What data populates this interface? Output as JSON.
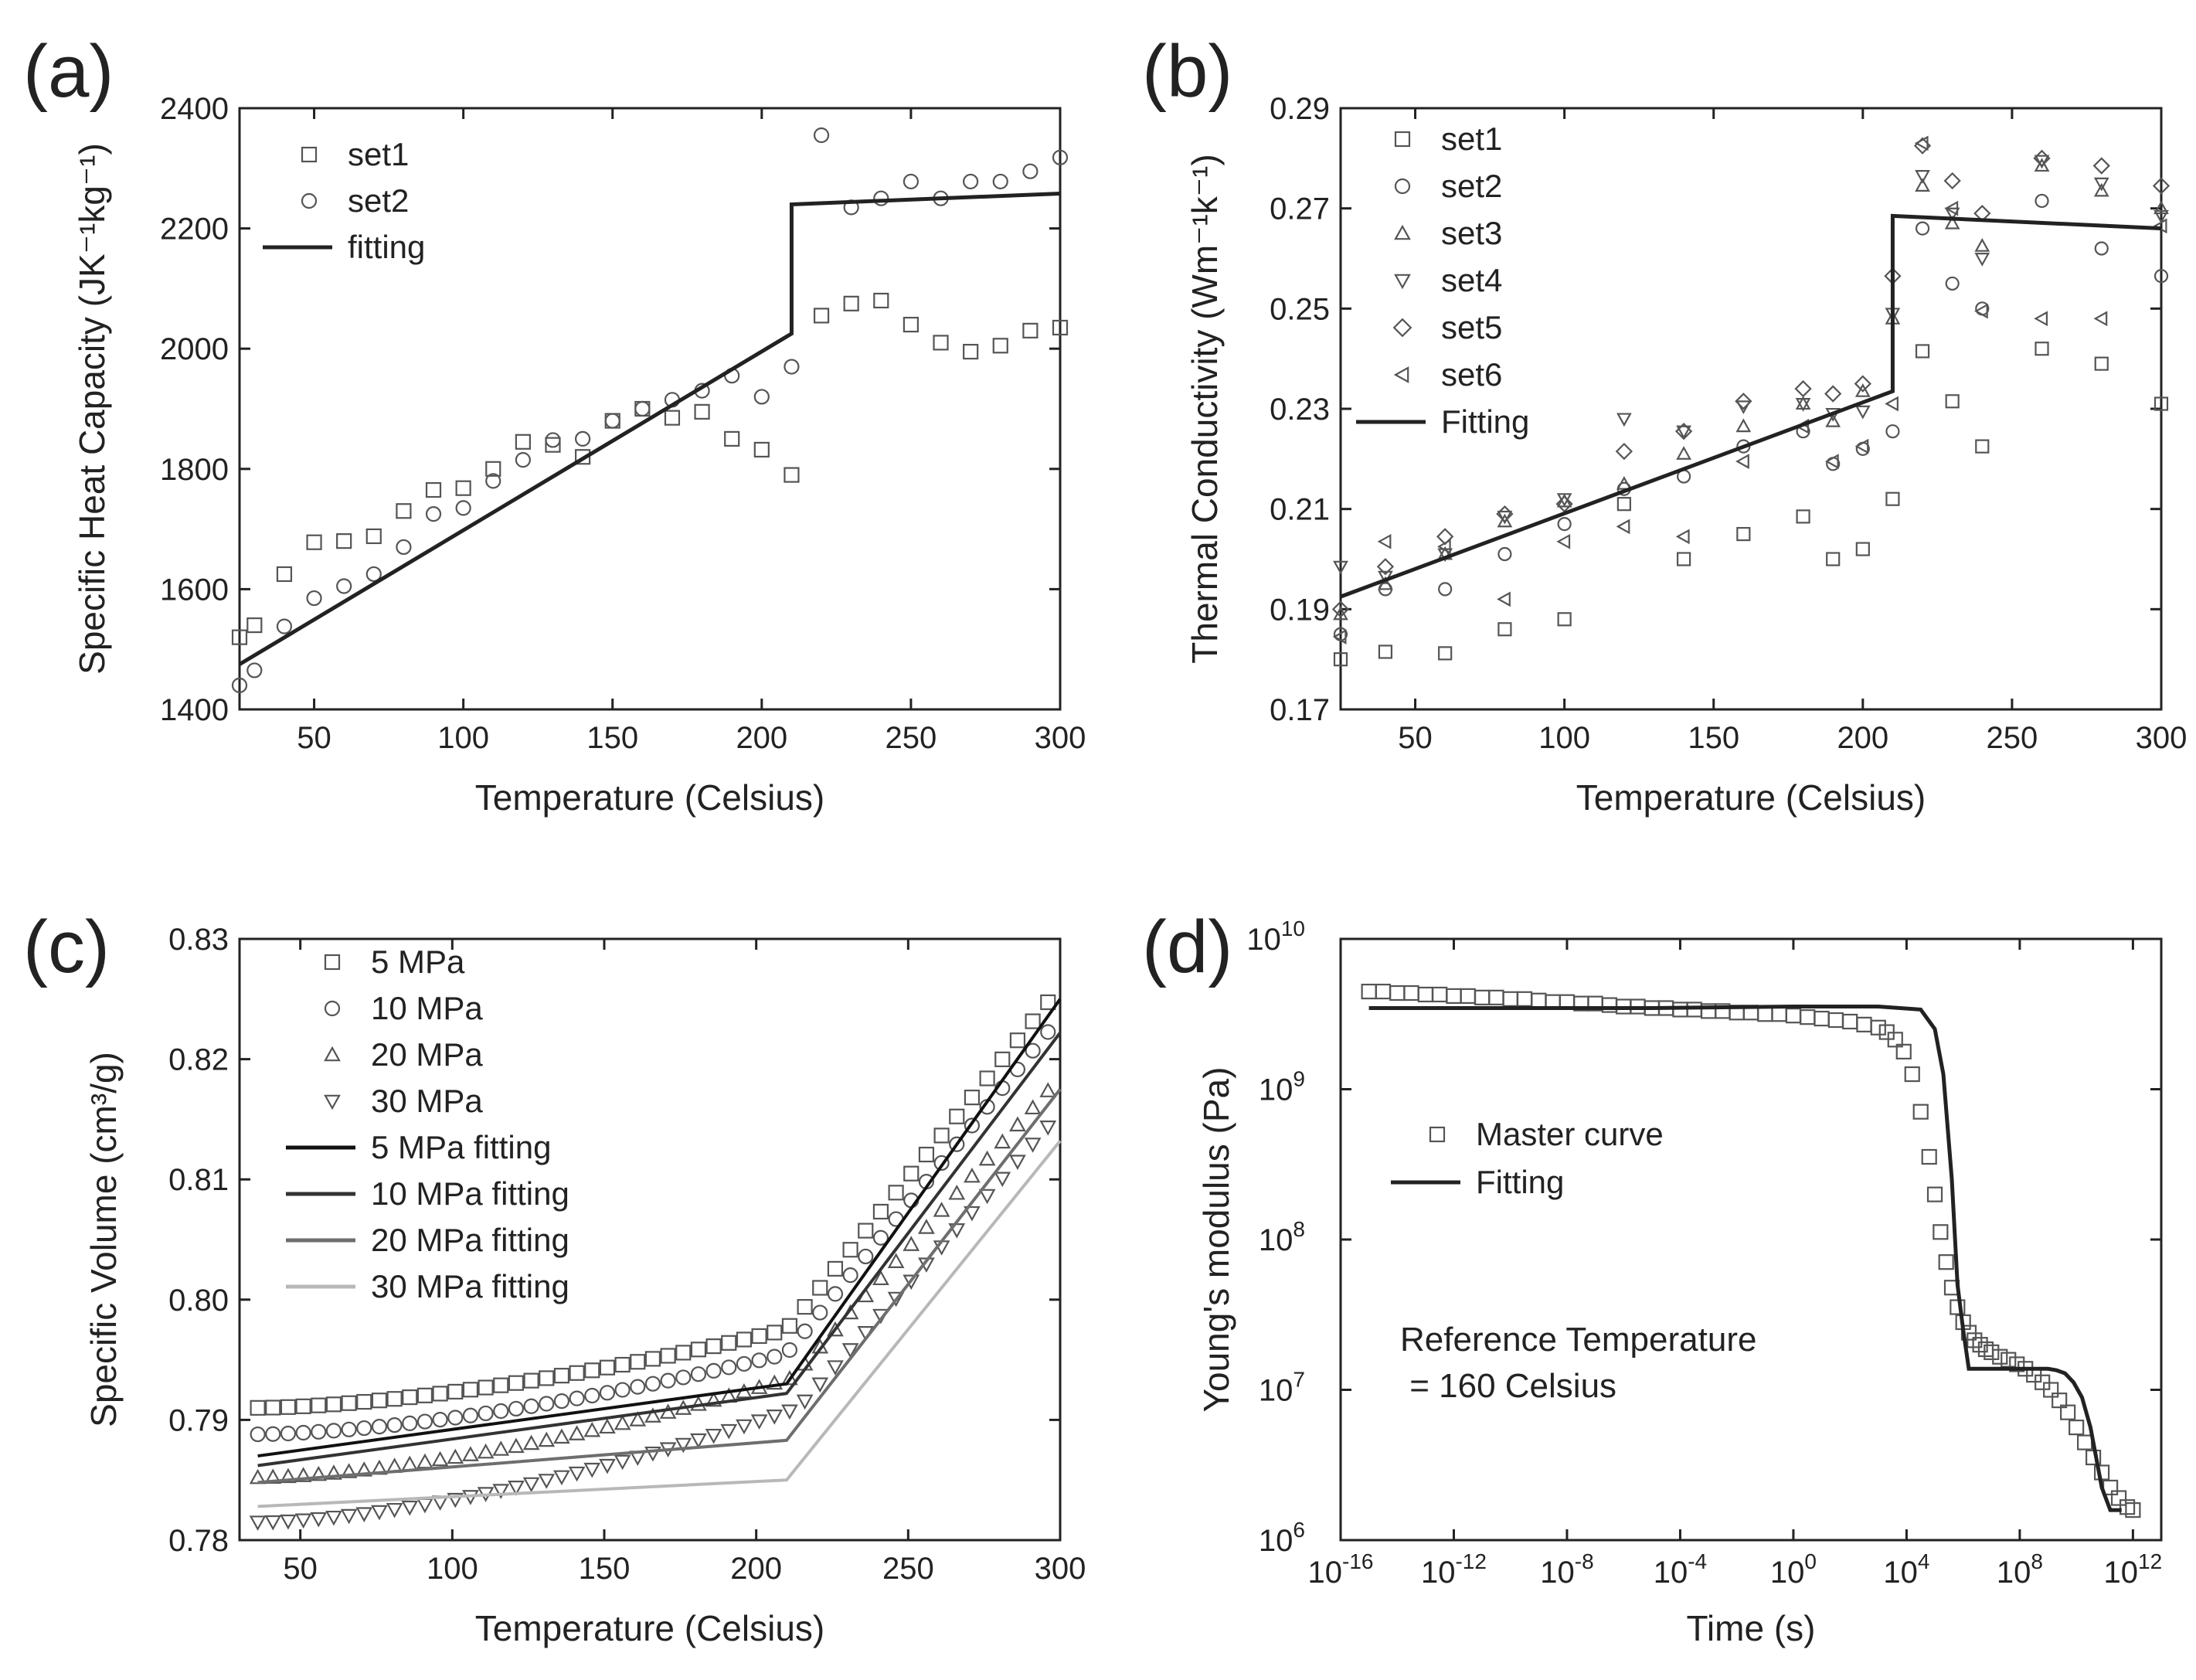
{
  "figure": {
    "panels": [
      "(a)",
      "(b)",
      "(c)",
      "(d)"
    ]
  },
  "chart_data": [
    {
      "panel": "(a)",
      "type": "scatter",
      "xlabel": "Temperature (Celsius)",
      "ylabel": "Specific Heat Capacity (JK⁻¹kg⁻¹)",
      "xlim": [
        25,
        300
      ],
      "ylim": [
        1400,
        2400
      ],
      "xticks": [
        50,
        100,
        150,
        200,
        250,
        300
      ],
      "yticks": [
        1400,
        1600,
        1800,
        2000,
        2200,
        2400
      ],
      "legend_position": "top-left",
      "series": [
        {
          "name": "set1",
          "marker": "square",
          "x": [
            25,
            30,
            40,
            50,
            60,
            70,
            80,
            90,
            100,
            110,
            120,
            130,
            140,
            150,
            160,
            170,
            180,
            190,
            200,
            210,
            220,
            230,
            240,
            250,
            260,
            270,
            280,
            290,
            300
          ],
          "y": [
            1520,
            1540,
            1625,
            1678,
            1680,
            1688,
            1730,
            1765,
            1768,
            1800,
            1845,
            1840,
            1820,
            1880,
            1900,
            1885,
            1895,
            1850,
            1832,
            1790,
            2055,
            2075,
            2080,
            2040,
            2010,
            1995,
            2005,
            2030,
            2035
          ]
        },
        {
          "name": "set2",
          "marker": "circle",
          "x": [
            25,
            30,
            40,
            50,
            60,
            70,
            80,
            90,
            100,
            110,
            120,
            130,
            140,
            150,
            160,
            170,
            180,
            190,
            200,
            210,
            220,
            230,
            240,
            250,
            260,
            270,
            280,
            290,
            300
          ],
          "y": [
            1440,
            1465,
            1538,
            1585,
            1605,
            1625,
            1670,
            1725,
            1735,
            1780,
            1815,
            1848,
            1850,
            1880,
            1900,
            1915,
            1930,
            1955,
            1920,
            1970,
            2355,
            2235,
            2250,
            2278,
            2250,
            2278,
            2278,
            2295,
            2318
          ]
        },
        {
          "name": "fitting",
          "line": true,
          "x": [
            25,
            210,
            210,
            300
          ],
          "y": [
            1475,
            2025,
            2240,
            2258
          ]
        }
      ]
    },
    {
      "panel": "(b)",
      "type": "scatter",
      "xlabel": "Temperature (Celsius)",
      "ylabel": "Thermal Conductivity (Wm⁻¹k⁻¹)",
      "xlim": [
        25,
        300
      ],
      "ylim": [
        0.17,
        0.29
      ],
      "xticks": [
        50,
        100,
        150,
        200,
        250,
        300
      ],
      "yticks": [
        0.17,
        0.19,
        0.21,
        0.23,
        0.25,
        0.27,
        0.29
      ],
      "legend_position": "top-left",
      "series": [
        {
          "name": "set1",
          "marker": "square",
          "x": [
            25,
            40,
            60,
            80,
            100,
            120,
            140,
            160,
            180,
            190,
            200,
            210,
            220,
            230,
            240,
            260,
            280,
            300
          ],
          "y": [
            0.18,
            0.1815,
            0.1812,
            0.186,
            0.188,
            0.211,
            0.2,
            0.205,
            0.2085,
            0.2,
            0.202,
            0.212,
            0.2415,
            0.2315,
            0.2225,
            0.242,
            0.239,
            0.231
          ]
        },
        {
          "name": "set2",
          "marker": "circle",
          "x": [
            25,
            40,
            60,
            80,
            100,
            120,
            140,
            160,
            180,
            190,
            200,
            210,
            220,
            230,
            240,
            260,
            280,
            300
          ],
          "y": [
            0.185,
            0.194,
            0.194,
            0.201,
            0.207,
            0.214,
            0.2165,
            0.2225,
            0.2255,
            0.219,
            0.222,
            0.2255,
            0.266,
            0.255,
            0.25,
            0.2715,
            0.262,
            0.2565
          ]
        },
        {
          "name": "set3",
          "marker": "triangle-up",
          "x": [
            25,
            40,
            60,
            80,
            100,
            120,
            140,
            160,
            180,
            190,
            200,
            210,
            220,
            230,
            240,
            260,
            280,
            300
          ],
          "y": [
            0.189,
            0.195,
            0.201,
            0.2075,
            0.2115,
            0.215,
            0.221,
            0.2265,
            0.231,
            0.2275,
            0.2335,
            0.248,
            0.2745,
            0.267,
            0.2625,
            0.2785,
            0.2735,
            0.27
          ]
        },
        {
          "name": "set4",
          "marker": "triangle-down",
          "x": [
            25,
            40,
            60,
            80,
            100,
            120,
            140,
            160,
            180,
            190,
            200,
            210,
            220,
            230,
            240,
            260,
            280,
            300
          ],
          "y": [
            0.1985,
            0.1965,
            0.201,
            0.2085,
            0.212,
            0.228,
            0.2255,
            0.2305,
            0.231,
            0.229,
            0.2295,
            0.249,
            0.2765,
            0.269,
            0.26,
            0.2795,
            0.275,
            0.2685
          ]
        },
        {
          "name": "set5",
          "marker": "diamond",
          "x": [
            25,
            40,
            60,
            80,
            100,
            120,
            140,
            160,
            180,
            190,
            200,
            210,
            220,
            230,
            240,
            260,
            280,
            300
          ],
          "y": [
            0.19,
            0.1985,
            0.2045,
            0.209,
            0.211,
            0.2215,
            0.2255,
            0.2315,
            0.234,
            0.233,
            0.235,
            0.2565,
            0.2825,
            0.2755,
            0.269,
            0.28,
            0.2785,
            0.2745
          ]
        },
        {
          "name": "set6",
          "marker": "triangle-left",
          "x": [
            25,
            40,
            60,
            80,
            100,
            120,
            140,
            160,
            180,
            190,
            200,
            210,
            220,
            230,
            240,
            260,
            280,
            300
          ],
          "y": [
            0.1845,
            0.2035,
            0.2025,
            0.192,
            0.2035,
            0.2065,
            0.2045,
            0.2195,
            0.2265,
            0.2195,
            0.2225,
            0.231,
            0.283,
            0.27,
            0.2495,
            0.248,
            0.248,
            0.2665
          ]
        },
        {
          "name": "Fitting",
          "line": true,
          "x": [
            25,
            210,
            210,
            300
          ],
          "y": [
            0.1925,
            0.2335,
            0.2685,
            0.266
          ]
        }
      ]
    },
    {
      "panel": "(c)",
      "type": "scatter",
      "xlabel": "Temperature (Celsius)",
      "ylabel": "Specific Volume (cm³/g)",
      "xlim": [
        30,
        300
      ],
      "ylim": [
        0.78,
        0.83
      ],
      "xticks": [
        50,
        100,
        150,
        200,
        250,
        300
      ],
      "yticks": [
        0.78,
        0.79,
        0.8,
        0.81,
        0.82,
        0.83
      ],
      "legend_position": "top-left",
      "series": [
        {
          "name": "5 MPa",
          "marker": "square",
          "x_start": 36,
          "x_end": 300,
          "x_step": 5,
          "y_at_start": 0.791,
          "y_at_knee": 0.7975,
          "knee_x": 210,
          "y_at_end": 0.826
        },
        {
          "name": "10 MPa",
          "marker": "circle",
          "x_start": 36,
          "x_end": 300,
          "x_step": 5,
          "y_at_start": 0.7888,
          "y_at_knee": 0.7955,
          "knee_x": 210,
          "y_at_end": 0.8235
        },
        {
          "name": "20 MPa",
          "marker": "triangle-up",
          "x_start": 36,
          "x_end": 300,
          "x_step": 5,
          "y_at_start": 0.7852,
          "y_at_knee": 0.7935,
          "knee_x": 212,
          "y_at_end": 0.8185
        },
        {
          "name": "30 MPa",
          "marker": "triangle-down",
          "x_start": 36,
          "x_end": 300,
          "x_step": 5,
          "y_at_start": 0.7815,
          "y_at_knee": 0.791,
          "knee_x": 214,
          "y_at_end": 0.8155
        },
        {
          "name": "5 MPa fitting",
          "line": true,
          "color": "#111111",
          "x": [
            36,
            210,
            300
          ],
          "y": [
            0.787,
            0.793,
            0.825
          ]
        },
        {
          "name": "10 MPa fitting",
          "line": true,
          "color": "#333333",
          "x": [
            36,
            210,
            300
          ],
          "y": [
            0.7862,
            0.7922,
            0.8222
          ]
        },
        {
          "name": "20 MPa fitting",
          "line": true,
          "color": "#6e6e6e",
          "x": [
            36,
            210,
            300
          ],
          "y": [
            0.7848,
            0.7883,
            0.8175
          ]
        },
        {
          "name": "30 MPa fitting",
          "line": true,
          "color": "#b8b8b8",
          "x": [
            36,
            210,
            300
          ],
          "y": [
            0.7828,
            0.785,
            0.8132
          ]
        }
      ]
    },
    {
      "panel": "(d)",
      "type": "scatter",
      "xscale": "log",
      "yscale": "log",
      "xlabel": "Time (s)",
      "ylabel": "Young's modulus (Pa)",
      "xlim_exp": [
        -16,
        13
      ],
      "ylim_exp": [
        6,
        10
      ],
      "xtick_exps": [
        -16,
        -12,
        -8,
        -4,
        0,
        4,
        8,
        12
      ],
      "ytick_exps": [
        6,
        7,
        8,
        9,
        10
      ],
      "legend_position": "center-left",
      "annotation": [
        "Reference Temperature",
        " = 160 Celsius"
      ],
      "series": [
        {
          "name": "Master curve",
          "marker": "square",
          "logx": [
            -15.0,
            -14.5,
            -14.0,
            -13.5,
            -13.0,
            -12.5,
            -12.0,
            -11.5,
            -11.0,
            -10.5,
            -10.0,
            -9.5,
            -9.0,
            -8.5,
            -8.0,
            -7.5,
            -7.0,
            -6.5,
            -6.0,
            -5.5,
            -5.0,
            -4.5,
            -4.0,
            -3.5,
            -3.0,
            -2.5,
            -2.0,
            -1.5,
            -1.0,
            -0.5,
            0.0,
            0.5,
            1.0,
            1.5,
            2.0,
            2.5,
            3.0,
            3.3,
            3.6,
            3.9,
            4.2,
            4.5,
            4.8,
            5.0,
            5.2,
            5.4,
            5.6,
            5.8,
            6.0,
            6.2,
            6.4,
            6.6,
            6.8,
            7.0,
            7.3,
            7.6,
            7.9,
            8.2,
            8.5,
            8.8,
            9.1,
            9.4,
            9.7,
            10.0,
            10.3,
            10.6,
            10.9,
            11.2,
            11.5,
            11.8,
            12.0
          ],
          "logy": [
            9.65,
            9.65,
            9.64,
            9.64,
            9.63,
            9.63,
            9.62,
            9.62,
            9.61,
            9.61,
            9.6,
            9.6,
            9.59,
            9.58,
            9.58,
            9.57,
            9.57,
            9.56,
            9.55,
            9.55,
            9.54,
            9.54,
            9.53,
            9.53,
            9.52,
            9.52,
            9.51,
            9.51,
            9.5,
            9.5,
            9.49,
            9.48,
            9.47,
            9.46,
            9.45,
            9.43,
            9.41,
            9.38,
            9.33,
            9.25,
            9.1,
            8.85,
            8.55,
            8.3,
            8.05,
            7.85,
            7.68,
            7.55,
            7.45,
            7.38,
            7.33,
            7.3,
            7.27,
            7.25,
            7.22,
            7.2,
            7.17,
            7.14,
            7.1,
            7.05,
            7.0,
            6.93,
            6.85,
            6.75,
            6.65,
            6.55,
            6.45,
            6.35,
            6.28,
            6.22,
            6.2
          ]
        },
        {
          "name": "Fitting",
          "line": true,
          "logx": [
            -15.0,
            -10.0,
            -5.0,
            0.0,
            3.0,
            4.5,
            5.0,
            5.3,
            5.6,
            5.8,
            6.0,
            6.2,
            6.5,
            7.0,
            7.5,
            8.0,
            8.5,
            9.0,
            9.3,
            9.6,
            9.9,
            10.2,
            10.5,
            10.7,
            10.9,
            11.2,
            11.6
          ],
          "logy": [
            9.54,
            9.54,
            9.54,
            9.55,
            9.55,
            9.53,
            9.4,
            9.1,
            8.4,
            7.7,
            7.4,
            7.14,
            7.14,
            7.14,
            7.14,
            7.14,
            7.14,
            7.14,
            7.13,
            7.11,
            7.05,
            6.95,
            6.75,
            6.55,
            6.35,
            6.2,
            6.2
          ]
        }
      ]
    }
  ]
}
